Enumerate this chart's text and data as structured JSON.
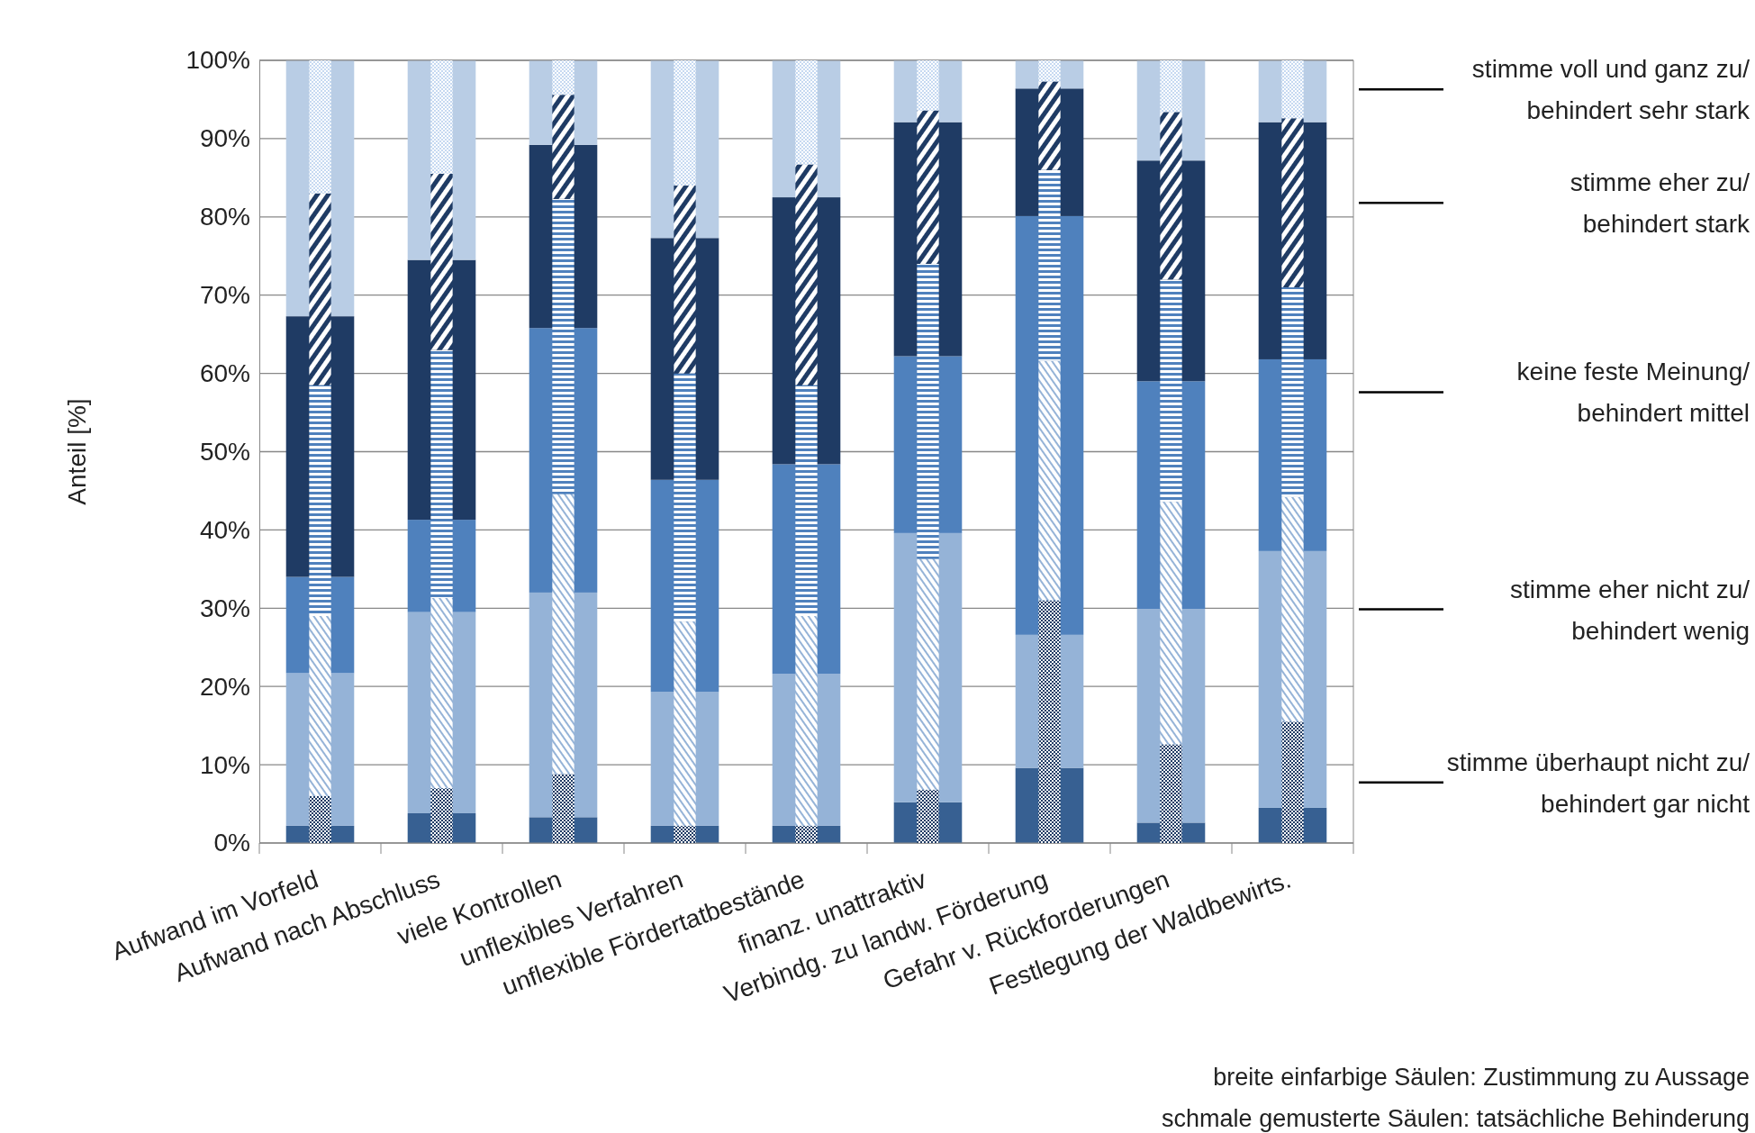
{
  "chart_data": [
    {
      "type": "bar",
      "stacked": true,
      "ylabel": "Anteil [%]",
      "legend": "right",
      "grid": "y",
      "categories": [
        "Aufwand im Vorfeld",
        "Aufwand nach Abschluss",
        "viele Kontrollen",
        "unflexibles Verfahren",
        "unflexible Fördertatbestände",
        "finanz. unattraktiv",
        "Verbindg. zu landw. Förderung",
        "Gefahr v. Rückforderungen",
        "Festlegung der Waldbewirts."
      ],
      "ylim": [
        0,
        100
      ],
      "yticks": [
        {
          "value": 0,
          "label": "0%"
        },
        {
          "value": 10,
          "label": "10%"
        },
        {
          "value": 20,
          "label": "20%"
        },
        {
          "value": 30,
          "label": "30%"
        },
        {
          "value": 40,
          "label": "40%"
        },
        {
          "value": 50,
          "label": "50%"
        },
        {
          "value": 60,
          "label": "60%"
        },
        {
          "value": 70,
          "label": "70%"
        },
        {
          "value": 80,
          "label": "80%"
        },
        {
          "value": 90,
          "label": "90%"
        },
        {
          "value": 100,
          "label": "100%"
        }
      ],
      "series": [
        {
          "name": "stimme überhaupt nicht zu/ behindert gar nicht",
          "color": "#376092",
          "values": [
            2.2,
            3.8,
            3.3,
            2.2,
            2.2,
            5.2,
            9.6,
            2.6,
            4.5
          ]
        },
        {
          "name": "stimme eher nicht zu/ behindert wenig",
          "color": "#95b3d7",
          "values": [
            19.5,
            25.7,
            28.7,
            17.1,
            19.4,
            34.4,
            17,
            27.3,
            32.8
          ]
        },
        {
          "name": "keine feste Meinung/ behindert mittel",
          "color": "#4f81bd",
          "values": [
            12.3,
            11.8,
            33.8,
            27.1,
            26.8,
            22.6,
            53.5,
            29.1,
            24.5
          ]
        },
        {
          "name": "stimme eher zu/ behindert stark",
          "color": "#1f3b64",
          "values": [
            33.3,
            33.2,
            23.4,
            30.9,
            34.1,
            29.9,
            16.3,
            28.2,
            30.3
          ]
        },
        {
          "name": "stimme voll und ganz zu/ behindert sehr stark",
          "color": "#b9cde5",
          "values": [
            32.7,
            25.5,
            10.8,
            22.7,
            17.5,
            7.9,
            3.6,
            12.8,
            7.9
          ]
        }
      ],
      "annotations": [
        "breite einfarbige Säulen: Zustimmung zu Aussage",
        "schmale gemusterte Säulen: tatsächliche Behinderung"
      ]
    },
    {
      "type": "bar",
      "stacked": true,
      "tick_labels": false,
      "categories": [
        null,
        null,
        null,
        null,
        null,
        null,
        null,
        null,
        null
      ],
      "ylim": [
        0,
        100
      ],
      "series": [
        {
          "color": "#1f3b64",
          "values": [
            6,
            7,
            8.8,
            2.2,
            2.2,
            6.8,
            31,
            12.6,
            15.5
          ]
        },
        {
          "color": "#95b3d7",
          "values": [
            23,
            24.3,
            35.8,
            26.1,
            26.8,
            29.5,
            30.6,
            31,
            28.7
          ]
        },
        {
          "color": "#4f81bd",
          "values": [
            29.5,
            31.7,
            37.7,
            31.7,
            29.5,
            37.7,
            24.4,
            28.4,
            26.8
          ]
        },
        {
          "color": "#1f3b64",
          "values": [
            24.5,
            22.5,
            13.3,
            24,
            28.2,
            19.6,
            11.3,
            21.4,
            21.6
          ]
        },
        {
          "color": "#c6d9f1",
          "values": [
            17,
            14.5,
            4.4,
            16,
            13.3,
            6.4,
            2.7,
            6.6,
            7.4
          ]
        }
      ]
    }
  ]
}
